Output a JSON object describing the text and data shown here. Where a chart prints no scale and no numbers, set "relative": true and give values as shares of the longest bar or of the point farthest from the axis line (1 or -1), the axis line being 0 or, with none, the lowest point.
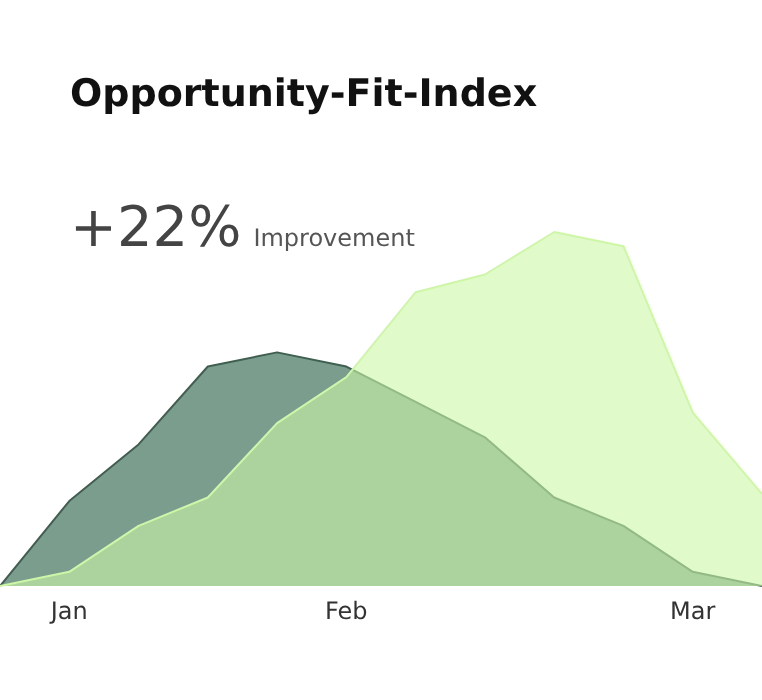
{
  "chart_data": {
    "type": "area",
    "title": "Opportunity-Fit-Index",
    "subtitle": "+22%",
    "annotations": [
      "Improvement"
    ],
    "relative": true,
    "categories": [
      null,
      "Jan",
      null,
      null,
      null,
      "Feb",
      null,
      null,
      null,
      null,
      "Mar",
      null
    ],
    "series": [
      {
        "color": "#5a8572",
        "values": [
          0,
          0.24,
          0.4,
          0.62,
          0.66,
          0.62,
          0.52,
          0.42,
          0.25,
          0.17,
          0.04,
          0
        ]
      },
      {
        "color": "#cdf7a6",
        "values": [
          0,
          0.04,
          0.17,
          0.25,
          0.46,
          0.59,
          0.83,
          0.88,
          1,
          0.96,
          0.49,
          0.26
        ]
      }
    ],
    "grid": false,
    "legend": false
  }
}
